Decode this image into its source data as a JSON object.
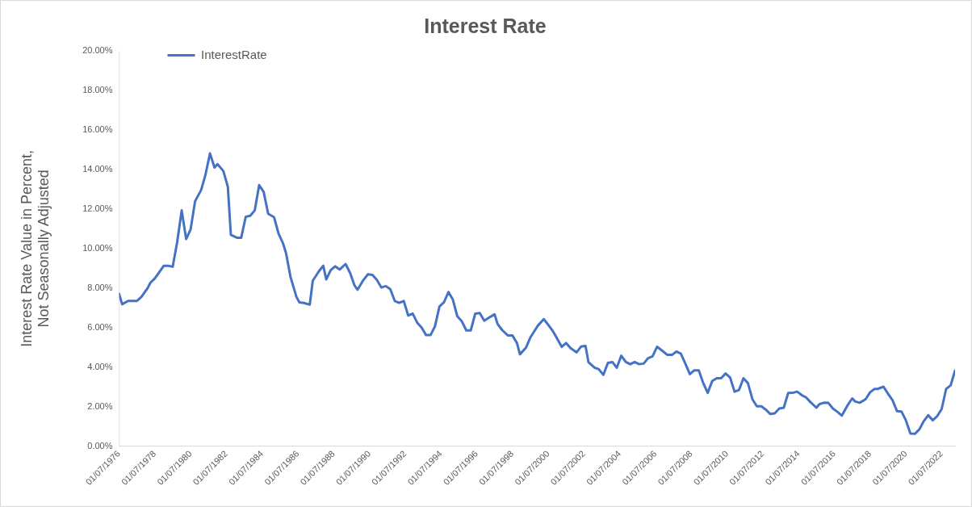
{
  "chart_data": {
    "type": "line",
    "title": "Interest Rate",
    "ylabel": "Interest Rate Value in Percent, Not Seasonally Adjusted",
    "x": [
      "1976-07",
      "1976-09",
      "1977-01",
      "1977-07",
      "1977-10",
      "1978-02",
      "1978-04",
      "1978-07",
      "1979-01",
      "1979-04",
      "1979-07",
      "1979-10",
      "1980-01",
      "1980-04",
      "1980-07",
      "1980-10",
      "1981-02",
      "1981-05",
      "1981-08",
      "1981-11",
      "1982-01",
      "1982-05",
      "1982-08",
      "1982-10",
      "1983-02",
      "1983-05",
      "1983-08",
      "1983-11",
      "1984-02",
      "1984-05",
      "1984-08",
      "1984-11",
      "1985-03",
      "1985-06",
      "1985-09",
      "1985-11",
      "1986-02",
      "1986-06",
      "1986-08",
      "1986-11",
      "1987-03",
      "1987-05",
      "1987-09",
      "1987-12",
      "1988-02",
      "1988-05",
      "1988-08",
      "1988-11",
      "1989-03",
      "1989-06",
      "1989-09",
      "1989-11",
      "1990-03",
      "1990-06",
      "1990-09",
      "1990-12",
      "1991-03",
      "1991-06",
      "1991-09",
      "1991-12",
      "1992-03",
      "1992-06",
      "1992-09",
      "1992-12",
      "1993-03",
      "1993-06",
      "1993-09",
      "1993-12",
      "1994-03",
      "1994-06",
      "1994-09",
      "1994-12",
      "1995-03",
      "1995-06",
      "1995-09",
      "1995-12",
      "1996-03",
      "1996-06",
      "1996-09",
      "1996-12",
      "1997-04",
      "1997-07",
      "1997-09",
      "1997-12",
      "1998-04",
      "1998-07",
      "1998-10",
      "1998-12",
      "1999-04",
      "1999-07",
      "1999-10",
      "1999-12",
      "2000-04",
      "2000-07",
      "2000-10",
      "2000-12",
      "2001-04",
      "2001-07",
      "2001-10",
      "2002-02",
      "2002-05",
      "2002-08",
      "2002-10",
      "2003-02",
      "2003-05",
      "2003-08",
      "2003-11",
      "2004-02",
      "2004-05",
      "2004-08",
      "2004-11",
      "2005-02",
      "2005-05",
      "2005-08",
      "2005-11",
      "2006-02",
      "2006-05",
      "2006-08",
      "2006-11",
      "2007-03",
      "2007-06",
      "2007-09",
      "2007-12",
      "2008-03",
      "2008-06",
      "2008-09",
      "2008-12",
      "2009-03",
      "2009-06",
      "2009-09",
      "2009-12",
      "2010-03",
      "2010-06",
      "2010-09",
      "2010-12",
      "2011-03",
      "2011-06",
      "2011-09",
      "2011-12",
      "2012-03",
      "2012-06",
      "2012-09",
      "2012-12",
      "2013-03",
      "2013-06",
      "2013-09",
      "2013-12",
      "2014-03",
      "2014-06",
      "2014-09",
      "2014-12",
      "2015-03",
      "2015-07",
      "2015-09",
      "2015-12",
      "2016-03",
      "2016-06",
      "2016-09",
      "2016-12",
      "2017-04",
      "2017-07",
      "2017-09",
      "2017-12",
      "2018-04",
      "2018-07",
      "2018-10",
      "2018-12",
      "2019-04",
      "2019-07",
      "2019-10",
      "2020-01",
      "2020-04",
      "2020-07",
      "2020-10",
      "2021-01",
      "2021-04",
      "2021-07",
      "2021-10",
      "2022-01",
      "2022-04",
      "2022-07",
      "2022-10",
      "2023-01",
      "2023-04"
    ],
    "series": [
      {
        "name": "InterestRate",
        "color": "#4472c4",
        "values": [
          7.71,
          7.18,
          7.35,
          7.35,
          7.56,
          7.99,
          8.27,
          8.49,
          9.13,
          9.13,
          9.08,
          10.33,
          11.93,
          10.48,
          10.97,
          12.4,
          12.96,
          13.74,
          14.81,
          14.1,
          14.27,
          13.92,
          13.11,
          10.69,
          10.55,
          10.55,
          11.61,
          11.66,
          11.93,
          13.21,
          12.87,
          11.76,
          11.59,
          10.76,
          10.26,
          9.77,
          8.56,
          7.56,
          7.28,
          7.25,
          7.16,
          8.37,
          8.84,
          9.13,
          8.44,
          8.91,
          9.1,
          8.94,
          9.22,
          8.77,
          8.13,
          7.92,
          8.41,
          8.7,
          8.67,
          8.41,
          8.03,
          8.1,
          7.94,
          7.35,
          7.25,
          7.35,
          6.61,
          6.71,
          6.26,
          6.0,
          5.62,
          5.62,
          6.07,
          7.07,
          7.28,
          7.8,
          7.42,
          6.57,
          6.32,
          5.86,
          5.86,
          6.71,
          6.74,
          6.35,
          6.54,
          6.67,
          6.18,
          5.88,
          5.6,
          5.6,
          5.22,
          4.65,
          4.98,
          5.5,
          5.86,
          6.1,
          6.43,
          6.14,
          5.83,
          5.57,
          5.03,
          5.22,
          4.96,
          4.75,
          5.04,
          5.07,
          4.25,
          3.98,
          3.89,
          3.61,
          4.22,
          4.26,
          3.97,
          4.58,
          4.26,
          4.15,
          4.26,
          4.15,
          4.18,
          4.46,
          4.55,
          5.03,
          4.86,
          4.62,
          4.62,
          4.79,
          4.68,
          4.18,
          3.65,
          3.84,
          3.84,
          3.2,
          2.7,
          3.3,
          3.44,
          3.44,
          3.68,
          3.48,
          2.76,
          2.84,
          3.44,
          3.19,
          2.38,
          2.02,
          2.02,
          1.85,
          1.63,
          1.66,
          1.91,
          1.95,
          2.69,
          2.7,
          2.76,
          2.59,
          2.47,
          2.23,
          1.95,
          2.13,
          2.2,
          2.19,
          1.91,
          1.74,
          1.55,
          2.09,
          2.42,
          2.26,
          2.2,
          2.38,
          2.73,
          2.9,
          2.9,
          3.01,
          2.66,
          2.33,
          1.78,
          1.76,
          1.31,
          0.64,
          0.63,
          0.85,
          1.27,
          1.57,
          1.31,
          1.52,
          1.88,
          2.9,
          3.08,
          3.83
        ]
      }
    ],
    "xlim": [
      "1976-07",
      "2023-04"
    ],
    "xticks": [
      {
        "value": "1976-07",
        "label": "01/07/1976"
      },
      {
        "value": "1978-07",
        "label": "01/07/1978"
      },
      {
        "value": "1980-07",
        "label": "01/07/1980"
      },
      {
        "value": "1982-07",
        "label": "01/07/1982"
      },
      {
        "value": "1984-07",
        "label": "01/07/1984"
      },
      {
        "value": "1986-07",
        "label": "01/07/1986"
      },
      {
        "value": "1988-07",
        "label": "01/07/1988"
      },
      {
        "value": "1990-07",
        "label": "01/07/1990"
      },
      {
        "value": "1992-07",
        "label": "01/07/1992"
      },
      {
        "value": "1994-07",
        "label": "01/07/1994"
      },
      {
        "value": "1996-07",
        "label": "01/07/1996"
      },
      {
        "value": "1998-07",
        "label": "01/07/1998"
      },
      {
        "value": "2000-07",
        "label": "01/07/2000"
      },
      {
        "value": "2002-07",
        "label": "01/07/2002"
      },
      {
        "value": "2004-07",
        "label": "01/07/2004"
      },
      {
        "value": "2006-07",
        "label": "01/07/2006"
      },
      {
        "value": "2008-07",
        "label": "01/07/2008"
      },
      {
        "value": "2010-07",
        "label": "01/07/2010"
      },
      {
        "value": "2012-07",
        "label": "01/07/2012"
      },
      {
        "value": "2014-07",
        "label": "01/07/2014"
      },
      {
        "value": "2016-07",
        "label": "01/07/2016"
      },
      {
        "value": "2018-07",
        "label": "01/07/2018"
      },
      {
        "value": "2020-07",
        "label": "01/07/2020"
      },
      {
        "value": "2022-07",
        "label": "01/07/2022"
      }
    ],
    "ylim": [
      0,
      20
    ],
    "yticks": [
      {
        "value": 0,
        "label": "0.00%"
      },
      {
        "value": 2,
        "label": "2.00%"
      },
      {
        "value": 4,
        "label": "4.00%"
      },
      {
        "value": 6,
        "label": "6.00%"
      },
      {
        "value": 8,
        "label": "8.00%"
      },
      {
        "value": 10,
        "label": "10.00%"
      },
      {
        "value": 12,
        "label": "12.00%"
      },
      {
        "value": 14,
        "label": "14.00%"
      },
      {
        "value": 16,
        "label": "16.00%"
      },
      {
        "value": 18,
        "label": "18.00%"
      },
      {
        "value": 20,
        "label": "20.00%"
      }
    ],
    "grid": false,
    "legend": "top left",
    "marker": "none",
    "line_style": "solid"
  }
}
